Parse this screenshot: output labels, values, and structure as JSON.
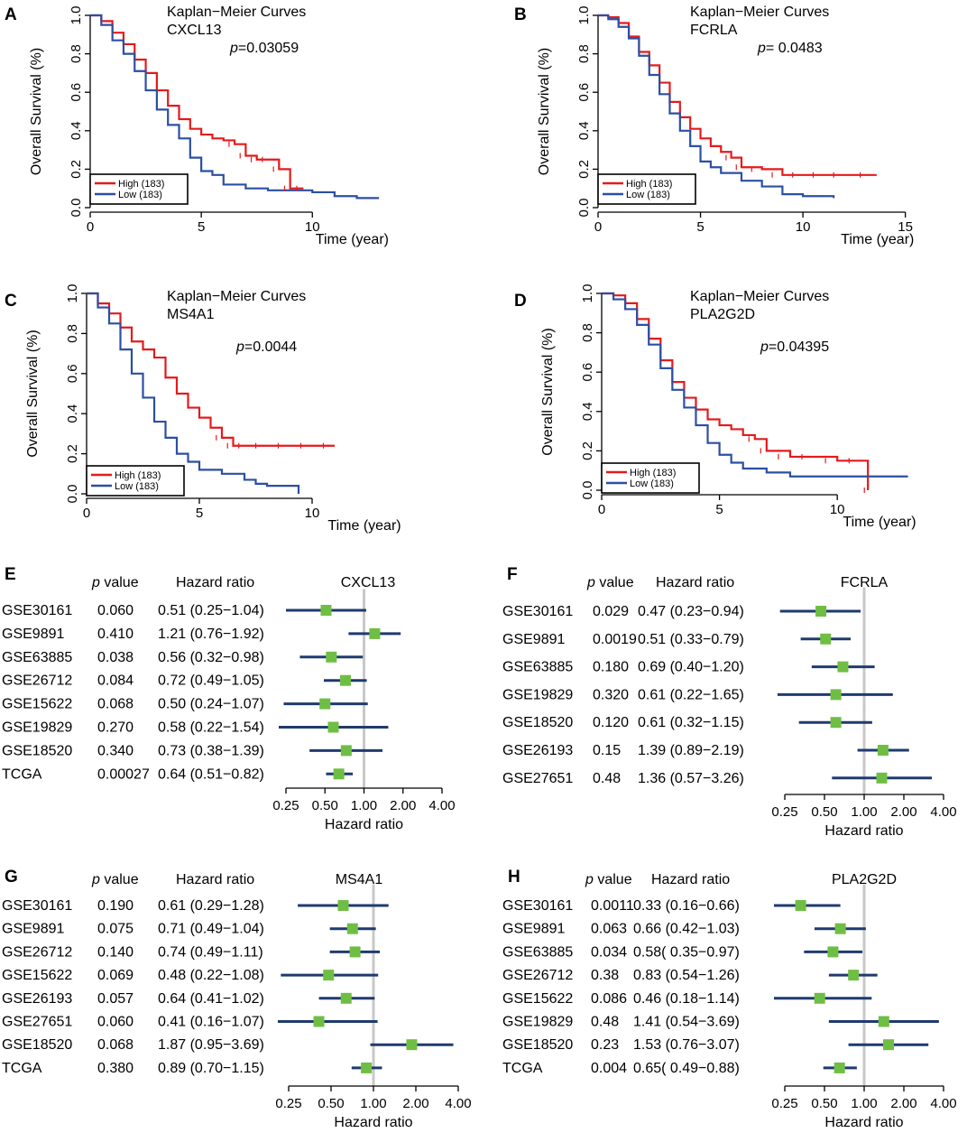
{
  "colors": {
    "high": "#e41a1c",
    "low": "#2b4fa3",
    "ci": "#1f3a6e",
    "box": "#6fbe44",
    "refline": "#c8c8c8"
  },
  "chart_data": [
    {
      "panel": "A",
      "type": "line",
      "title": "Kaplan−Meier Curves",
      "gene": "CXCL13",
      "p_prefix": "p",
      "p_text": "=0.03059",
      "xlabel": "Time (year)",
      "ylabel": "Overall Survival (%)",
      "xlim": [
        0,
        13.4
      ],
      "ylim": [
        0,
        1
      ],
      "xticks": [
        0,
        5,
        10
      ],
      "yticks": [
        "0.0",
        "0.2",
        "0.4",
        "0.6",
        "0.8",
        "1.0"
      ],
      "legend": [
        "High (183)",
        "Low (183)"
      ],
      "series": [
        {
          "name": "High (183)",
          "x": [
            0,
            0.5,
            1,
            1.5,
            2,
            2.5,
            3,
            3.5,
            4,
            4.5,
            5,
            5.5,
            6,
            6.5,
            7,
            7.5,
            8,
            8.5,
            9,
            9.6
          ],
          "y": [
            1.0,
            0.97,
            0.91,
            0.85,
            0.77,
            0.7,
            0.61,
            0.53,
            0.46,
            0.41,
            0.38,
            0.36,
            0.35,
            0.33,
            0.27,
            0.25,
            0.25,
            0.2,
            0.1,
            0.1
          ]
        },
        {
          "name": "Low (183)",
          "x": [
            0,
            0.5,
            1,
            1.5,
            2,
            2.5,
            3,
            3.5,
            4,
            4.5,
            5,
            5.5,
            6,
            7,
            8,
            9,
            10,
            11,
            12,
            13
          ],
          "y": [
            1.0,
            0.95,
            0.87,
            0.8,
            0.71,
            0.61,
            0.51,
            0.43,
            0.36,
            0.26,
            0.19,
            0.17,
            0.12,
            0.1,
            0.09,
            0.09,
            0.08,
            0.06,
            0.05,
            0.05
          ]
        }
      ]
    },
    {
      "panel": "B",
      "type": "line",
      "title": "Kaplan−Meier Curves",
      "gene": "FCRLA",
      "p_prefix": "p",
      "p_text": "= 0.0483",
      "xlabel": "Time (year)",
      "ylabel": "Overall Survival (%)",
      "xlim": [
        0,
        15.5
      ],
      "ylim": [
        0,
        1
      ],
      "xticks": [
        0,
        5,
        10,
        15
      ],
      "yticks": [
        "0.0",
        "0.2",
        "0.4",
        "0.6",
        "0.8",
        "1.0"
      ],
      "legend": [
        "High (183)",
        "Low (183)"
      ],
      "series": [
        {
          "name": "High (183)",
          "x": [
            0,
            0.5,
            1,
            1.5,
            2,
            2.5,
            3,
            3.5,
            4,
            4.5,
            5,
            5.5,
            6,
            6.5,
            7,
            8,
            9,
            10,
            11,
            12,
            13.6
          ],
          "y": [
            1.0,
            0.99,
            0.96,
            0.89,
            0.81,
            0.74,
            0.65,
            0.55,
            0.47,
            0.41,
            0.36,
            0.32,
            0.29,
            0.26,
            0.21,
            0.2,
            0.17,
            0.17,
            0.17,
            0.17,
            0.17
          ]
        },
        {
          "name": "Low (183)",
          "x": [
            0,
            0.5,
            1,
            1.5,
            2,
            2.5,
            3,
            3.5,
            4,
            4.5,
            5,
            5.5,
            6,
            7,
            8,
            9,
            10,
            11,
            11.5
          ],
          "y": [
            1.0,
            0.98,
            0.94,
            0.88,
            0.79,
            0.69,
            0.59,
            0.49,
            0.4,
            0.32,
            0.24,
            0.21,
            0.18,
            0.14,
            0.11,
            0.07,
            0.06,
            0.06,
            0.05
          ]
        }
      ]
    },
    {
      "panel": "C",
      "type": "line",
      "title": "Kaplan−Meier Curves",
      "gene": "MS4A1",
      "p_prefix": "p",
      "p_text": "=0.0044",
      "xlabel": "Time (year)",
      "ylabel": "Overall Survival (%)",
      "xlim": [
        0,
        14
      ],
      "ylim": [
        0,
        1
      ],
      "xticks": [
        0,
        5,
        10
      ],
      "yticks": [
        "0.0",
        "0.2",
        "0.4",
        "0.6",
        "0.8",
        "1.0"
      ],
      "legend": [
        "High (183)",
        "Low (183)"
      ],
      "series": [
        {
          "name": "High (183)",
          "x": [
            0,
            0.5,
            1,
            1.5,
            2,
            2.5,
            3,
            3.5,
            4,
            4.5,
            5,
            5.5,
            6,
            6.5,
            7,
            8,
            9,
            10,
            11
          ],
          "y": [
            1.0,
            0.95,
            0.9,
            0.83,
            0.76,
            0.72,
            0.68,
            0.58,
            0.5,
            0.43,
            0.38,
            0.33,
            0.28,
            0.24,
            0.24,
            0.24,
            0.24,
            0.24,
            0.24
          ]
        },
        {
          "name": "Low (183)",
          "x": [
            0,
            0.5,
            1,
            1.5,
            2,
            2.5,
            3,
            3.5,
            4,
            4.5,
            5,
            6,
            7,
            7.5,
            8,
            9,
            9.4
          ],
          "y": [
            1.0,
            0.93,
            0.85,
            0.72,
            0.6,
            0.48,
            0.36,
            0.28,
            0.2,
            0.16,
            0.12,
            0.1,
            0.07,
            0.05,
            0.04,
            0.04,
            0.0
          ]
        }
      ]
    },
    {
      "panel": "D",
      "type": "line",
      "title": "Kaplan−Meier Curves",
      "gene": "PLA2G2D",
      "p_prefix": "p",
      "p_text": "=0.04395",
      "xlabel": "Time (year)",
      "ylabel": "Overall Survival (%)",
      "xlim": [
        0,
        13.4
      ],
      "ylim": [
        0,
        1
      ],
      "xticks": [
        0,
        5,
        10
      ],
      "yticks": [
        "0.0",
        "0.2",
        "0.4",
        "0.6",
        "0.8",
        "1.0"
      ],
      "legend": [
        "High (183)",
        "Low (183)"
      ],
      "series": [
        {
          "name": "High (183)",
          "x": [
            0,
            0.5,
            1,
            1.5,
            2,
            2.5,
            3,
            3.5,
            4,
            4.5,
            5,
            5.5,
            6,
            6.5,
            7,
            8,
            9,
            10,
            11,
            11.3
          ],
          "y": [
            1.0,
            0.99,
            0.95,
            0.87,
            0.77,
            0.66,
            0.55,
            0.47,
            0.41,
            0.36,
            0.33,
            0.31,
            0.28,
            0.26,
            0.2,
            0.17,
            0.17,
            0.15,
            0.15,
            0.0
          ]
        },
        {
          "name": "Low (183)",
          "x": [
            0,
            0.5,
            1,
            1.5,
            2,
            2.5,
            3,
            3.5,
            4,
            4.5,
            5,
            5.5,
            6,
            7,
            8,
            9,
            10,
            11,
            12,
            13
          ],
          "y": [
            1.0,
            0.97,
            0.92,
            0.84,
            0.74,
            0.62,
            0.51,
            0.42,
            0.33,
            0.24,
            0.18,
            0.14,
            0.11,
            0.09,
            0.07,
            0.07,
            0.07,
            0.07,
            0.07,
            0.07
          ]
        }
      ]
    },
    {
      "panel": "E",
      "type": "forest",
      "gene": "CXCL13",
      "col_p": "value",
      "col_p_prefix": "p",
      "col_hr": "Hazard ratio",
      "xlabel": "Hazard ratio",
      "xticks": [
        "0.25",
        "0.50",
        "1.00",
        "2.00",
        "4.00"
      ],
      "xtick_values": [
        0.25,
        0.5,
        1,
        2,
        4
      ],
      "rows": [
        {
          "label": "GSE30161",
          "p": "0.060",
          "hr_text": "0.51 (0.25−1.04)",
          "hr": 0.51,
          "lo": 0.25,
          "hi": 1.04
        },
        {
          "label": "GSE9891",
          "p": "0.410",
          "hr_text": "1.21 (0.76−1.92)",
          "hr": 1.21,
          "lo": 0.76,
          "hi": 1.92
        },
        {
          "label": "GSE63885",
          "p": "0.038",
          "hr_text": "0.56 (0.32−0.98)",
          "hr": 0.56,
          "lo": 0.32,
          "hi": 0.98
        },
        {
          "label": "GSE26712",
          "p": "0.084",
          "hr_text": "0.72 (0.49−1.05)",
          "hr": 0.72,
          "lo": 0.49,
          "hi": 1.05
        },
        {
          "label": "GSE15622",
          "p": "0.068",
          "hr_text": "0.50 (0.24−1.07)",
          "hr": 0.5,
          "lo": 0.24,
          "hi": 1.07
        },
        {
          "label": "GSE19829",
          "p": "0.270",
          "hr_text": "0.58 (0.22−1.54)",
          "hr": 0.58,
          "lo": 0.22,
          "hi": 1.54
        },
        {
          "label": "GSE18520",
          "p": "0.340",
          "hr_text": "0.73 (0.38−1.39)",
          "hr": 0.73,
          "lo": 0.38,
          "hi": 1.39
        },
        {
          "label": "TCGA",
          "p": "0.00027",
          "hr_text": "0.64 (0.51−0.82)",
          "hr": 0.64,
          "lo": 0.51,
          "hi": 0.82
        }
      ]
    },
    {
      "panel": "F",
      "type": "forest",
      "gene": "FCRLA",
      "col_p": "value",
      "col_p_prefix": "p",
      "col_hr": "Hazard ratio",
      "xlabel": "Hazard ratio",
      "xticks": [
        "0.25",
        "0.50",
        "1.00",
        "2.00",
        "4.00"
      ],
      "xtick_values": [
        0.25,
        0.5,
        1,
        2,
        4
      ],
      "rows": [
        {
          "label": "GSE30161",
          "p": "0.029",
          "hr_text": "0.47 (0.23−0.94)",
          "hr": 0.47,
          "lo": 0.23,
          "hi": 0.94
        },
        {
          "label": "GSE9891",
          "p": "0.0019",
          "hr_text": "0.51 (0.33−0.79)",
          "hr": 0.51,
          "lo": 0.33,
          "hi": 0.79
        },
        {
          "label": "GSE63885",
          "p": "0.180",
          "hr_text": "0.69 (0.40−1.20)",
          "hr": 0.69,
          "lo": 0.4,
          "hi": 1.2
        },
        {
          "label": "GSE19829",
          "p": "0.320",
          "hr_text": "0.61 (0.22−1.65)",
          "hr": 0.61,
          "lo": 0.22,
          "hi": 1.65
        },
        {
          "label": "GSE18520",
          "p": "0.120",
          "hr_text": "0.61 (0.32−1.15)",
          "hr": 0.61,
          "lo": 0.32,
          "hi": 1.15
        },
        {
          "label": "GSE26193",
          "p": "0.15",
          "hr_text": "1.39 (0.89−2.19)",
          "hr": 1.39,
          "lo": 0.89,
          "hi": 2.19
        },
        {
          "label": "GSE27651",
          "p": "0.48",
          "hr_text": "1.36 (0.57−3.26)",
          "hr": 1.36,
          "lo": 0.57,
          "hi": 3.26
        }
      ]
    },
    {
      "panel": "G",
      "type": "forest",
      "gene": "MS4A1",
      "col_p": "value",
      "col_p_prefix": "p",
      "col_hr": "Hazard ratio",
      "xlabel": "Hazard ratio",
      "xticks": [
        "0.25",
        "0.50",
        "1.00",
        "2.00",
        "4.00"
      ],
      "xtick_values": [
        0.25,
        0.5,
        1,
        2,
        4
      ],
      "rows": [
        {
          "label": "GSE30161",
          "p": "0.190",
          "hr_text": "0.61 (0.29−1.28)",
          "hr": 0.61,
          "lo": 0.29,
          "hi": 1.28
        },
        {
          "label": "GSE9891",
          "p": "0.075",
          "hr_text": "0.71 (0.49−1.04)",
          "hr": 0.71,
          "lo": 0.49,
          "hi": 1.04
        },
        {
          "label": "GSE26712",
          "p": "0.140",
          "hr_text": "0.74 (0.49−1.11)",
          "hr": 0.74,
          "lo": 0.49,
          "hi": 1.11
        },
        {
          "label": "GSE15622",
          "p": "0.069",
          "hr_text": "0.48 (0.22−1.08)",
          "hr": 0.48,
          "lo": 0.22,
          "hi": 1.08
        },
        {
          "label": "GSE26193",
          "p": "0.057",
          "hr_text": "0.64 (0.41−1.02)",
          "hr": 0.64,
          "lo": 0.41,
          "hi": 1.02
        },
        {
          "label": "GSE27651",
          "p": "0.060",
          "hr_text": "0.41 (0.16−1.07)",
          "hr": 0.41,
          "lo": 0.16,
          "hi": 1.07
        },
        {
          "label": "GSE18520",
          "p": "0.068",
          "hr_text": "1.87 (0.95−3.69)",
          "hr": 1.87,
          "lo": 0.95,
          "hi": 3.69
        },
        {
          "label": "TCGA",
          "p": "0.380",
          "hr_text": "0.89 (0.70−1.15)",
          "hr": 0.89,
          "lo": 0.7,
          "hi": 1.15
        }
      ]
    },
    {
      "panel": "H",
      "type": "forest",
      "gene": "PLA2G2D",
      "col_p": "value",
      "col_p_prefix": "p",
      "col_hr": "Hazard ratio",
      "xlabel": "Hazard ratio",
      "xticks": [
        "0.25",
        "0.50",
        "1.00",
        "2.00",
        "4.00"
      ],
      "xtick_values": [
        0.25,
        0.5,
        1,
        2,
        4
      ],
      "rows": [
        {
          "label": "GSE30161",
          "p": "0.0011",
          "hr_text": "0.33 (0.16−0.66)",
          "hr": 0.33,
          "lo": 0.16,
          "hi": 0.66
        },
        {
          "label": "GSE9891",
          "p": "0.063",
          "hr_text": "0.66 (0.42−1.03)",
          "hr": 0.66,
          "lo": 0.42,
          "hi": 1.03
        },
        {
          "label": "GSE63885",
          "p": "0.034",
          "hr_text": "0.58( 0.35−0.97)",
          "hr": 0.58,
          "lo": 0.35,
          "hi": 0.97
        },
        {
          "label": "GSE26712",
          "p": "0.38",
          "hr_text": "0.83 (0.54−1.26)",
          "hr": 0.83,
          "lo": 0.54,
          "hi": 1.26
        },
        {
          "label": "GSE15622",
          "p": "0.086",
          "hr_text": "0.46 (0.18−1.14)",
          "hr": 0.46,
          "lo": 0.18,
          "hi": 1.14
        },
        {
          "label": "GSE19829",
          "p": "0.48",
          "hr_text": "1.41 (0.54−3.69)",
          "hr": 1.41,
          "lo": 0.54,
          "hi": 3.69
        },
        {
          "label": "GSE18520",
          "p": "0.23",
          "hr_text": "1.53 (0.76−3.07)",
          "hr": 1.53,
          "lo": 0.76,
          "hi": 3.07
        },
        {
          "label": "TCGA",
          "p": "0.004",
          "hr_text": "0.65( 0.49−0.88)",
          "hr": 0.65,
          "lo": 0.49,
          "hi": 0.88
        }
      ]
    }
  ]
}
